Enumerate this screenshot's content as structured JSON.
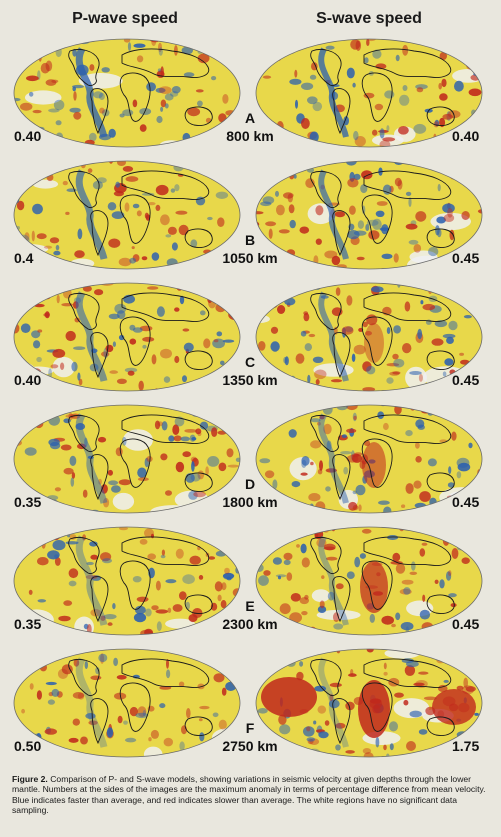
{
  "headers": {
    "p_wave": "P-wave speed",
    "s_wave": "S-wave speed"
  },
  "rows": [
    {
      "letter": "A",
      "depth": "800 km",
      "p_max": "0.40",
      "s_max": "0.40"
    },
    {
      "letter": "B",
      "depth": "1050 km",
      "p_max": "0.4",
      "s_max": "0.45"
    },
    {
      "letter": "C",
      "depth": "1350 km",
      "p_max": "0.40",
      "s_max": "0.45"
    },
    {
      "letter": "D",
      "depth": "1800 km",
      "p_max": "0.35",
      "s_max": "0.45"
    },
    {
      "letter": "E",
      "depth": "2300 km",
      "p_max": "0.35",
      "s_max": "0.45"
    },
    {
      "letter": "F",
      "depth": "2750 km",
      "p_max": "0.50",
      "s_max": "1.75"
    }
  ],
  "caption": {
    "label": "Figure 2.",
    "text": "Comparison of P- and S-wave models, showing variations in seismic velocity at given depths through the lower mantle. Numbers at the sides of the images are the maximum anomaly in terms of percentage difference from mean velocity. Blue indicates faster than average, and red indicates slower than average. The white regions have no significant data sampling."
  },
  "colors": {
    "neutral": "#e8d84a",
    "fast": "#2a5fb0",
    "slow": "#c0281c",
    "no_data": "#eef0f2",
    "coastline": "#1b1b1b"
  }
}
